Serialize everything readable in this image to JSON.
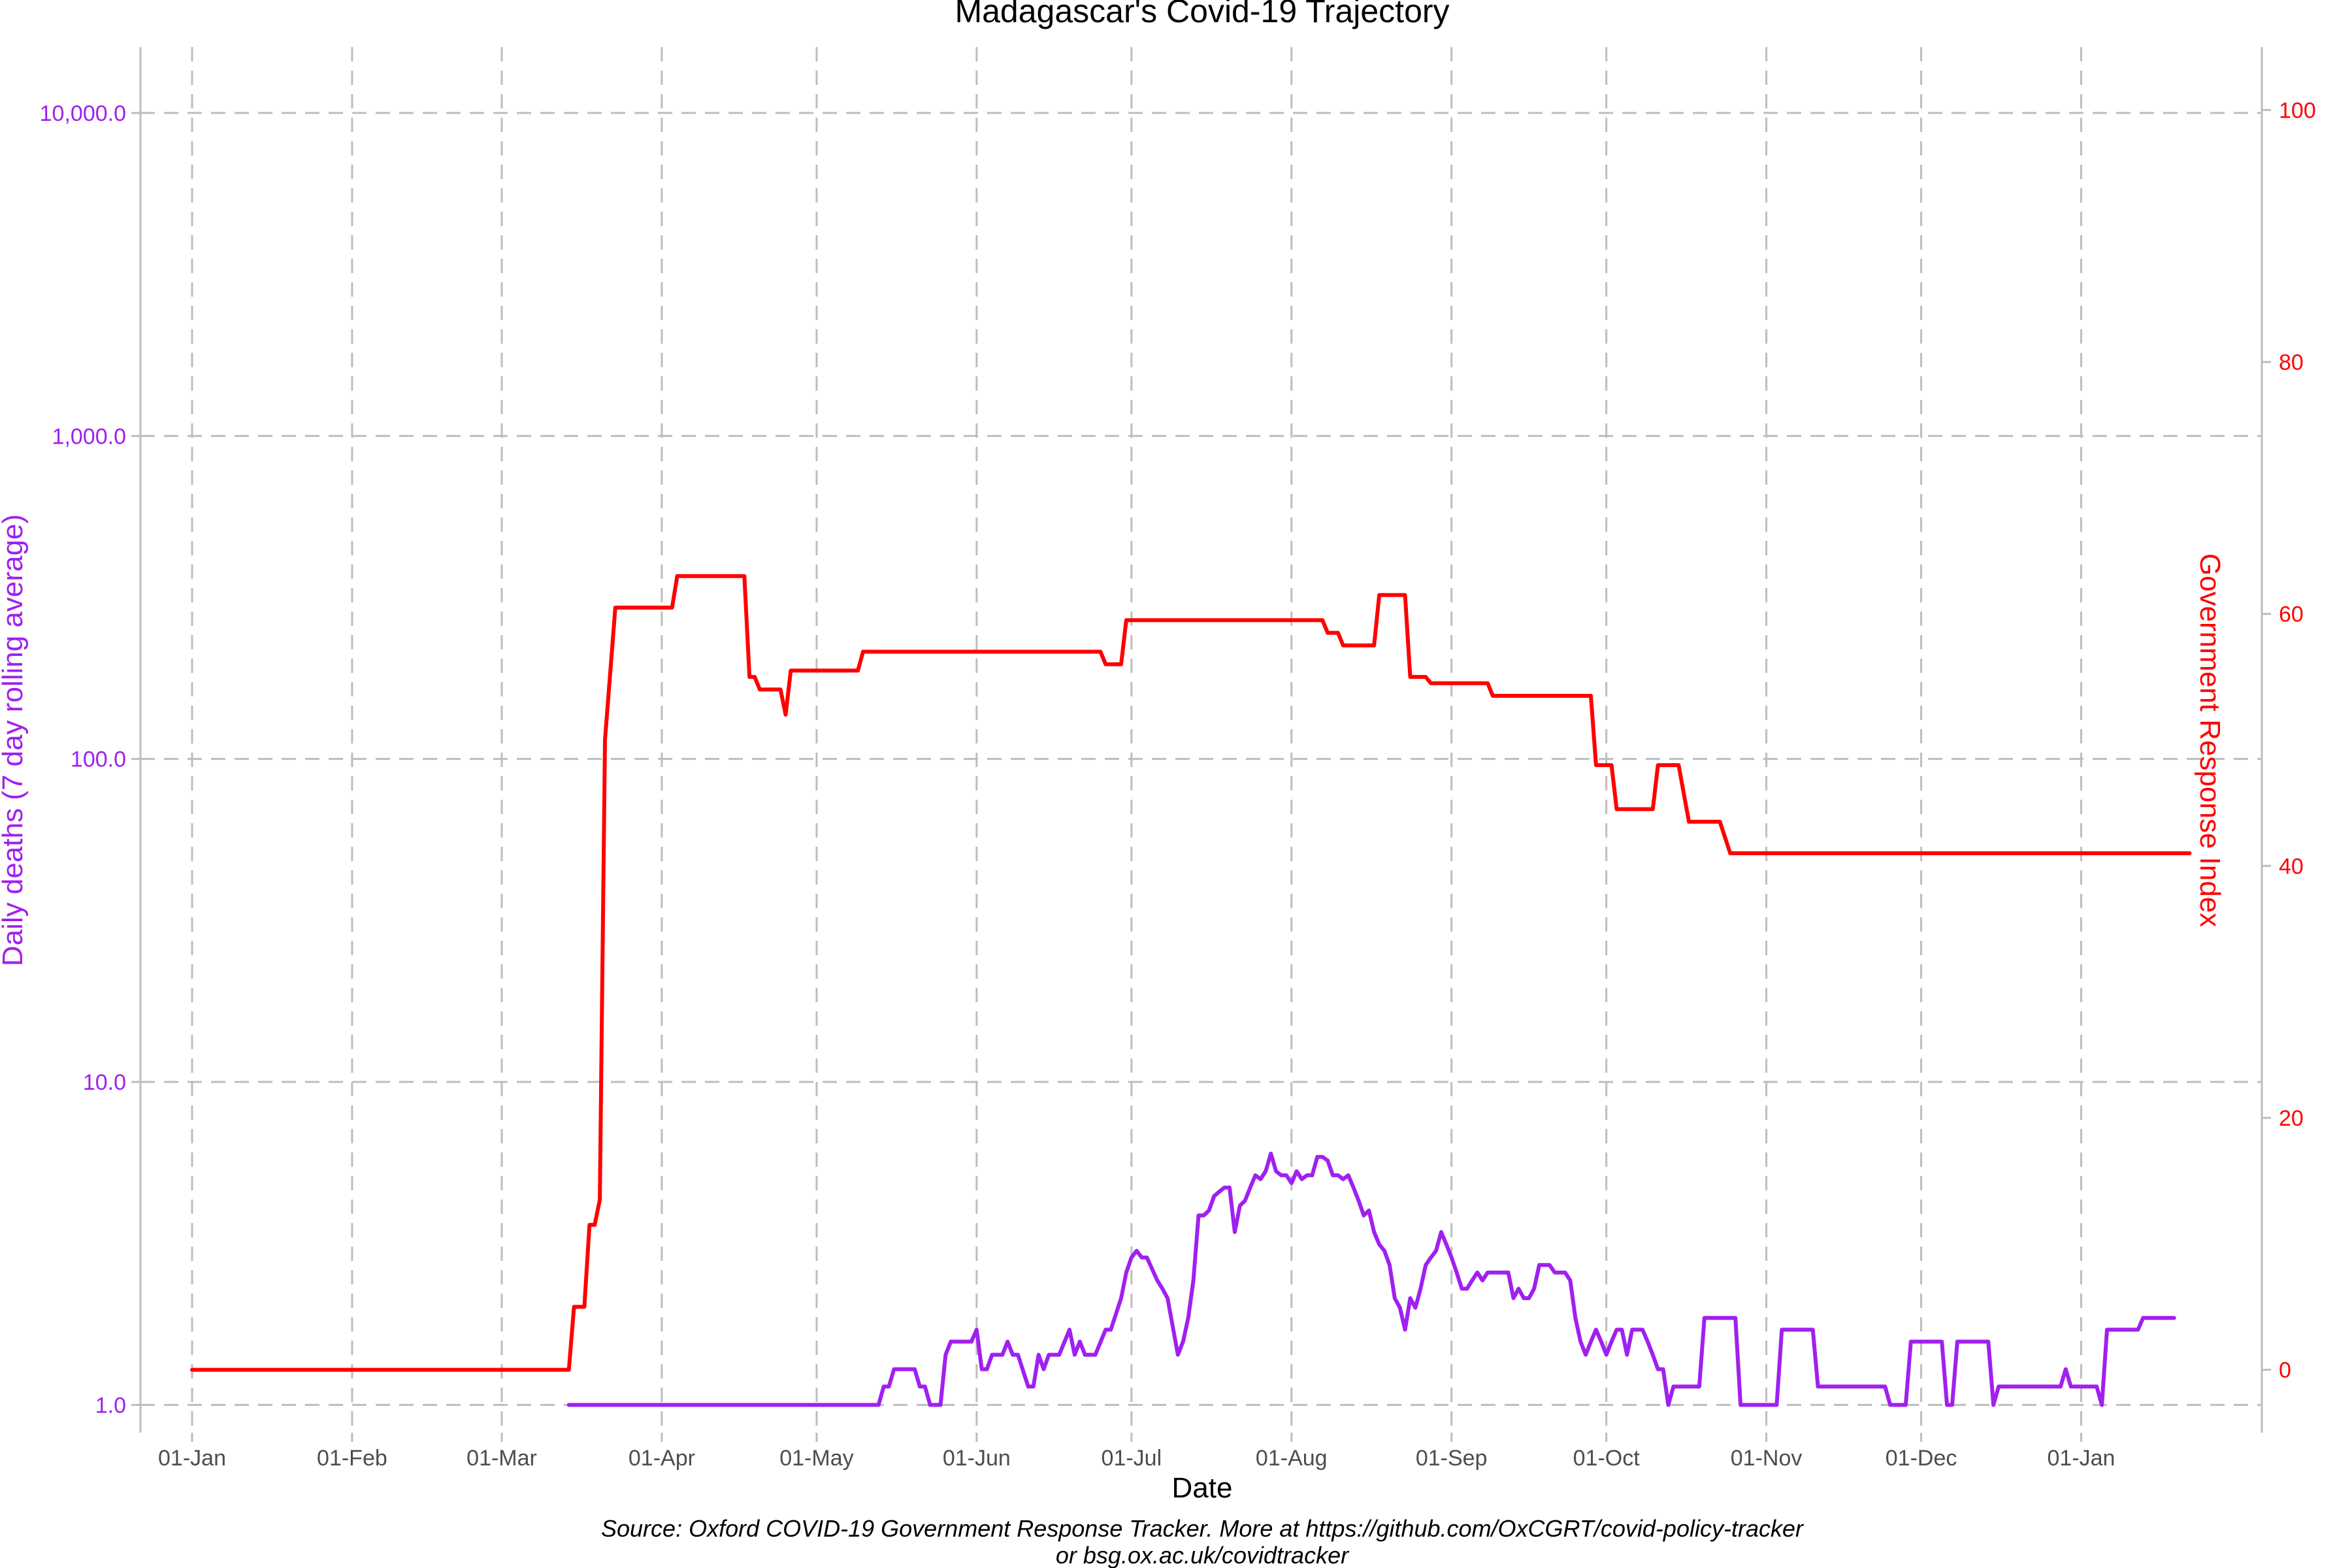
{
  "chart_data": {
    "type": "line",
    "title": "Madagascar's Covid-19 Trajectory",
    "xlabel": "Date",
    "ylabel_left": "Daily deaths (7 day rolling average)",
    "ylabel_right": "Government Response Index",
    "caption_line1": "Source: Oxford COVID-19 Government Response Tracker. More at https://github.com/OxCGRT/covid-policy-tracker",
    "caption_line2": "or bsg.ox.ac.uk/covidtracker",
    "x_range": [
      "2019-12-22",
      "2021-02-05"
    ],
    "x_ticks": [
      {
        "date": "2020-01-01",
        "label": "01-Jan"
      },
      {
        "date": "2020-02-01",
        "label": "01-Feb"
      },
      {
        "date": "2020-03-01",
        "label": "01-Mar"
      },
      {
        "date": "2020-04-01",
        "label": "01-Apr"
      },
      {
        "date": "2020-05-01",
        "label": "01-May"
      },
      {
        "date": "2020-06-01",
        "label": "01-Jun"
      },
      {
        "date": "2020-07-01",
        "label": "01-Jul"
      },
      {
        "date": "2020-08-01",
        "label": "01-Aug"
      },
      {
        "date": "2020-09-01",
        "label": "01-Sep"
      },
      {
        "date": "2020-10-01",
        "label": "01-Oct"
      },
      {
        "date": "2020-11-01",
        "label": "01-Nov"
      },
      {
        "date": "2020-12-01",
        "label": "01-Dec"
      },
      {
        "date": "2021-01-01",
        "label": "01-Jan"
      }
    ],
    "y_left": {
      "scale": "log10",
      "range": [
        0.82,
        16000
      ],
      "ticks": [
        1,
        10,
        100,
        1000,
        10000
      ],
      "tick_labels": [
        "1.0",
        "10.0",
        "100.0",
        "1,000.0",
        "10,000.0"
      ],
      "color": "#a020f0"
    },
    "y_right": {
      "scale": "linear",
      "range": [
        -5,
        105
      ],
      "ticks": [
        0,
        20,
        40,
        60,
        80,
        100
      ],
      "tick_labels": [
        "0",
        "20",
        "40",
        "60",
        "80",
        "100"
      ],
      "color": "#ff0000"
    },
    "grid": true,
    "series": [
      {
        "axis": "right",
        "color": "#ff0000",
        "points": [
          [
            "2020-01-01",
            0
          ],
          [
            "2020-03-14",
            0
          ],
          [
            "2020-03-15",
            5
          ],
          [
            "2020-03-17",
            5
          ],
          [
            "2020-03-18",
            11.5
          ],
          [
            "2020-03-19",
            11.5
          ],
          [
            "2020-03-20",
            13.5
          ],
          [
            "2020-03-21",
            50
          ],
          [
            "2020-03-23",
            60.5
          ],
          [
            "2020-04-03",
            60.5
          ],
          [
            "2020-04-04",
            63
          ],
          [
            "2020-04-17",
            63
          ],
          [
            "2020-04-18",
            55
          ],
          [
            "2020-04-19",
            55
          ],
          [
            "2020-04-20",
            54
          ],
          [
            "2020-04-24",
            54
          ],
          [
            "2020-04-25",
            52
          ],
          [
            "2020-04-26",
            55.5
          ],
          [
            "2020-05-09",
            55.5
          ],
          [
            "2020-05-10",
            57
          ],
          [
            "2020-06-25",
            57
          ],
          [
            "2020-06-26",
            56
          ],
          [
            "2020-06-29",
            56
          ],
          [
            "2020-06-30",
            59.5
          ],
          [
            "2020-08-07",
            59.5
          ],
          [
            "2020-08-08",
            58.5
          ],
          [
            "2020-08-10",
            58.5
          ],
          [
            "2020-08-11",
            57.5
          ],
          [
            "2020-08-17",
            57.5
          ],
          [
            "2020-08-18",
            61.5
          ],
          [
            "2020-08-23",
            61.5
          ],
          [
            "2020-08-24",
            55
          ],
          [
            "2020-08-27",
            55
          ],
          [
            "2020-08-28",
            54.5
          ],
          [
            "2020-09-08",
            54.5
          ],
          [
            "2020-09-09",
            53.5
          ],
          [
            "2020-09-28",
            53.5
          ],
          [
            "2020-09-29",
            48
          ],
          [
            "2020-10-02",
            48
          ],
          [
            "2020-10-03",
            44.5
          ],
          [
            "2020-10-10",
            44.5
          ],
          [
            "2020-10-11",
            48
          ],
          [
            "2020-10-15",
            48
          ],
          [
            "2020-10-17",
            43.5
          ],
          [
            "2020-10-23",
            43.5
          ],
          [
            "2020-10-25",
            41
          ],
          [
            "2021-01-22",
            41
          ]
        ]
      },
      {
        "axis": "left",
        "color": "#a020f0",
        "points": [
          [
            "2020-03-14",
            1
          ],
          [
            "2020-05-13",
            1
          ],
          [
            "2020-05-14",
            1.14
          ],
          [
            "2020-05-15",
            1.14
          ],
          [
            "2020-05-16",
            1.29
          ],
          [
            "2020-05-20",
            1.29
          ],
          [
            "2020-05-21",
            1.14
          ],
          [
            "2020-05-22",
            1.14
          ],
          [
            "2020-05-23",
            1
          ],
          [
            "2020-05-25",
            1
          ],
          [
            "2020-05-26",
            1.43
          ],
          [
            "2020-05-27",
            1.57
          ],
          [
            "2020-05-31",
            1.57
          ],
          [
            "2020-06-01",
            1.71
          ],
          [
            "2020-06-02",
            1.29
          ],
          [
            "2020-06-03",
            1.29
          ],
          [
            "2020-06-04",
            1.43
          ],
          [
            "2020-06-06",
            1.43
          ],
          [
            "2020-06-07",
            1.57
          ],
          [
            "2020-06-08",
            1.43
          ],
          [
            "2020-06-09",
            1.43
          ],
          [
            "2020-06-11",
            1.14
          ],
          [
            "2020-06-12",
            1.14
          ],
          [
            "2020-06-13",
            1.43
          ],
          [
            "2020-06-14",
            1.29
          ],
          [
            "2020-06-15",
            1.43
          ],
          [
            "2020-06-17",
            1.43
          ],
          [
            "2020-06-19",
            1.71
          ],
          [
            "2020-06-20",
            1.43
          ],
          [
            "2020-06-21",
            1.57
          ],
          [
            "2020-06-22",
            1.43
          ],
          [
            "2020-06-24",
            1.43
          ],
          [
            "2020-06-26",
            1.71
          ],
          [
            "2020-06-27",
            1.71
          ],
          [
            "2020-06-29",
            2.14
          ],
          [
            "2020-06-30",
            2.57
          ],
          [
            "2020-07-01",
            2.86
          ],
          [
            "2020-07-02",
            3
          ],
          [
            "2020-07-03",
            2.86
          ],
          [
            "2020-07-04",
            2.86
          ],
          [
            "2020-07-06",
            2.43
          ],
          [
            "2020-07-07",
            2.29
          ],
          [
            "2020-07-08",
            2.14
          ],
          [
            "2020-07-10",
            1.43
          ],
          [
            "2020-07-11",
            1.57
          ],
          [
            "2020-07-12",
            1.86
          ],
          [
            "2020-07-13",
            2.43
          ],
          [
            "2020-07-14",
            3.86
          ],
          [
            "2020-07-15",
            3.86
          ],
          [
            "2020-07-16",
            4
          ],
          [
            "2020-07-17",
            4.43
          ],
          [
            "2020-07-18",
            4.57
          ],
          [
            "2020-07-19",
            4.71
          ],
          [
            "2020-07-20",
            4.71
          ],
          [
            "2020-07-21",
            3.43
          ],
          [
            "2020-07-22",
            4.14
          ],
          [
            "2020-07-23",
            4.29
          ],
          [
            "2020-07-24",
            4.71
          ],
          [
            "2020-07-25",
            5.14
          ],
          [
            "2020-07-26",
            5
          ],
          [
            "2020-07-27",
            5.29
          ],
          [
            "2020-07-28",
            6
          ],
          [
            "2020-07-29",
            5.29
          ],
          [
            "2020-07-30",
            5.14
          ],
          [
            "2020-07-31",
            5.14
          ],
          [
            "2020-08-01",
            4.86
          ],
          [
            "2020-08-02",
            5.29
          ],
          [
            "2020-08-03",
            5
          ],
          [
            "2020-08-04",
            5.14
          ],
          [
            "2020-08-05",
            5.14
          ],
          [
            "2020-08-06",
            5.86
          ],
          [
            "2020-08-07",
            5.86
          ],
          [
            "2020-08-08",
            5.71
          ],
          [
            "2020-08-09",
            5.14
          ],
          [
            "2020-08-10",
            5.14
          ],
          [
            "2020-08-11",
            5
          ],
          [
            "2020-08-12",
            5.14
          ],
          [
            "2020-08-13",
            4.71
          ],
          [
            "2020-08-14",
            4.29
          ],
          [
            "2020-08-15",
            3.86
          ],
          [
            "2020-08-16",
            4
          ],
          [
            "2020-08-17",
            3.43
          ],
          [
            "2020-08-18",
            3.14
          ],
          [
            "2020-08-19",
            3
          ],
          [
            "2020-08-20",
            2.71
          ],
          [
            "2020-08-21",
            2.14
          ],
          [
            "2020-08-22",
            2
          ],
          [
            "2020-08-23",
            1.71
          ],
          [
            "2020-08-24",
            2.14
          ],
          [
            "2020-08-25",
            2
          ],
          [
            "2020-08-26",
            2.29
          ],
          [
            "2020-08-27",
            2.71
          ],
          [
            "2020-08-28",
            2.86
          ],
          [
            "2020-08-29",
            3
          ],
          [
            "2020-08-30",
            3.43
          ],
          [
            "2020-08-31",
            3.14
          ],
          [
            "2020-09-01",
            2.86
          ],
          [
            "2020-09-02",
            2.57
          ],
          [
            "2020-09-03",
            2.29
          ],
          [
            "2020-09-04",
            2.29
          ],
          [
            "2020-09-05",
            2.43
          ],
          [
            "2020-09-06",
            2.57
          ],
          [
            "2020-09-07",
            2.43
          ],
          [
            "2020-09-08",
            2.57
          ],
          [
            "2020-09-12",
            2.57
          ],
          [
            "2020-09-13",
            2.14
          ],
          [
            "2020-09-14",
            2.29
          ],
          [
            "2020-09-15",
            2.14
          ],
          [
            "2020-09-16",
            2.14
          ],
          [
            "2020-09-17",
            2.29
          ],
          [
            "2020-09-18",
            2.71
          ],
          [
            "2020-09-20",
            2.71
          ],
          [
            "2020-09-21",
            2.57
          ],
          [
            "2020-09-23",
            2.57
          ],
          [
            "2020-09-24",
            2.43
          ],
          [
            "2020-09-25",
            1.86
          ],
          [
            "2020-09-26",
            1.57
          ],
          [
            "2020-09-27",
            1.43
          ],
          [
            "2020-09-28",
            1.57
          ],
          [
            "2020-09-29",
            1.71
          ],
          [
            "2020-09-30",
            1.57
          ],
          [
            "2020-10-01",
            1.43
          ],
          [
            "2020-10-02",
            1.57
          ],
          [
            "2020-10-03",
            1.71
          ],
          [
            "2020-10-04",
            1.71
          ],
          [
            "2020-10-05",
            1.43
          ],
          [
            "2020-10-06",
            1.71
          ],
          [
            "2020-10-08",
            1.71
          ],
          [
            "2020-10-09",
            1.57
          ],
          [
            "2020-10-10",
            1.43
          ],
          [
            "2020-10-11",
            1.29
          ],
          [
            "2020-10-12",
            1.29
          ],
          [
            "2020-10-13",
            1
          ],
          [
            "2020-10-14",
            1.14
          ],
          [
            "2020-10-19",
            1.14
          ],
          [
            "2020-10-20",
            1.86
          ],
          [
            "2020-10-26",
            1.86
          ],
          [
            "2020-10-27",
            1
          ],
          [
            "2020-11-03",
            1
          ],
          [
            "2020-11-04",
            1.71
          ],
          [
            "2020-11-10",
            1.71
          ],
          [
            "2020-11-11",
            1.14
          ],
          [
            "2020-11-24",
            1.14
          ],
          [
            "2020-11-25",
            1
          ],
          [
            "2020-11-28",
            1
          ],
          [
            "2020-11-29",
            1.57
          ],
          [
            "2020-12-05",
            1.57
          ],
          [
            "2020-12-06",
            1
          ],
          [
            "2020-12-07",
            1
          ],
          [
            "2020-12-08",
            1.57
          ],
          [
            "2020-12-14",
            1.57
          ],
          [
            "2020-12-15",
            1
          ],
          [
            "2020-12-16",
            1.14
          ],
          [
            "2020-12-28",
            1.14
          ],
          [
            "2020-12-29",
            1.29
          ],
          [
            "2020-12-30",
            1.14
          ],
          [
            "2021-01-04",
            1.14
          ],
          [
            "2021-01-05",
            1
          ],
          [
            "2021-01-06",
            1.71
          ],
          [
            "2021-01-12",
            1.71
          ],
          [
            "2021-01-13",
            1.86
          ],
          [
            "2021-01-19",
            1.86
          ]
        ]
      }
    ]
  }
}
